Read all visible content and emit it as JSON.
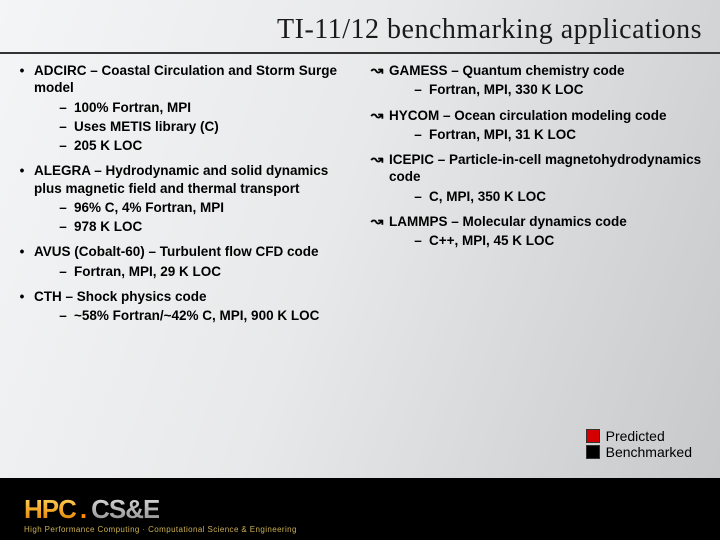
{
  "title": "TI-11/12 benchmarking applications",
  "left_bullet": "•",
  "right_bullet": "↝",
  "dash": "–",
  "left": [
    {
      "head": "ADCIRC – Coastal Circulation and Storm Surge model",
      "subs": [
        "100% Fortran, MPI",
        "Uses METIS library (C)",
        "205 K LOC"
      ]
    },
    {
      "head": "ALEGRA – Hydrodynamic and solid dynamics plus magnetic field and thermal transport",
      "subs": [
        "96% C, 4% Fortran, MPI",
        "978 K LOC"
      ]
    },
    {
      "head": "AVUS (Cobalt-60) – Turbulent flow CFD code",
      "subs": [
        "Fortran, MPI, 29 K LOC"
      ]
    },
    {
      "head": "CTH – Shock physics code",
      "subs": [
        "~58% Fortran/~42% C, MPI, 900 K LOC"
      ]
    }
  ],
  "right": [
    {
      "head": "GAMESS – Quantum chemistry code",
      "subs": [
        "Fortran, MPI, 330 K LOC"
      ]
    },
    {
      "head": "HYCOM – Ocean circulation modeling code",
      "subs": [
        "Fortran, MPI, 31 K LOC"
      ]
    },
    {
      "head": "ICEPIC – Particle-in-cell magnetohydrodynamics code",
      "subs": [
        "C, MPI, 350 K LOC"
      ]
    },
    {
      "head": "LAMMPS – Molecular dynamics code",
      "subs": [
        "C++, MPI, 45 K LOC"
      ]
    }
  ],
  "legend": {
    "predicted": {
      "label": "Predicted",
      "color": "#d40000"
    },
    "benchmarked": {
      "label": "Benchmarked",
      "color": "#000000"
    }
  },
  "footer": {
    "hpc": "HPC",
    "dot": ".",
    "cse": "CS&E",
    "tagline_left": "High Performance Computing",
    "tagline_sep": "·",
    "tagline_right": "Computational Science & Engineering"
  }
}
